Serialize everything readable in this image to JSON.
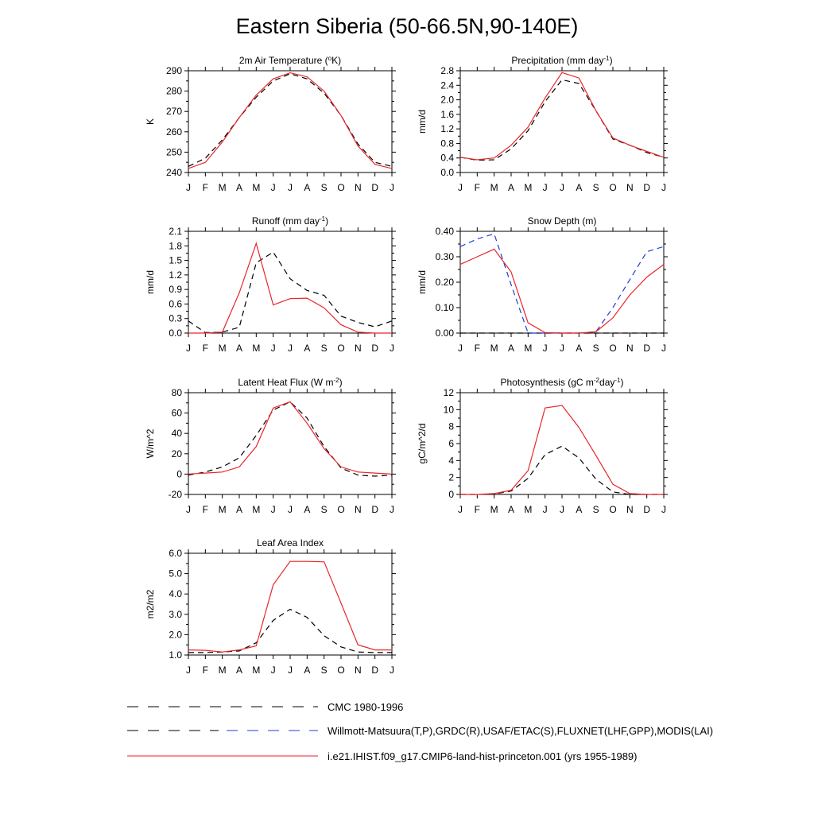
{
  "title": "Eastern Siberia (50-66.5N,90-140E)",
  "months": [
    "J",
    "F",
    "M",
    "A",
    "M",
    "J",
    "J",
    "A",
    "S",
    "O",
    "N",
    "D",
    "J"
  ],
  "colors": {
    "model": "#e8262b",
    "cmc": "#000000",
    "obs_black": "#000000",
    "obs_blue": "#1f3fd6"
  },
  "legend": [
    {
      "label": "CMC 1980-1996",
      "style": "dash-black"
    },
    {
      "label": "Willmott-Matsuura(T,P),GRDC(R),USAF/ETAC(S),FLUXNET(LHF,GPP),MODIS(LAI)",
      "style": "dash-black-blue"
    },
    {
      "label": "i.e21.IHIST.f09_g17.CMIP6-land-hist-princeton.001 (yrs 1955-1989)",
      "style": "solid-red"
    }
  ],
  "chart_data": [
    {
      "type": "line",
      "title": "2m Air Temperature (°K)",
      "ylabel": "K",
      "ylim": [
        240,
        290
      ],
      "yticks": [
        240,
        250,
        260,
        270,
        280,
        290
      ],
      "ytick_labels": [
        "240",
        "250",
        "260",
        "270",
        "280",
        "290"
      ],
      "categories": [
        "J",
        "F",
        "M",
        "A",
        "M",
        "J",
        "J",
        "A",
        "S",
        "O",
        "N",
        "D",
        "J"
      ],
      "series": [
        {
          "role": "obs",
          "color": "#000000",
          "dash": true,
          "values": [
            243,
            247,
            256,
            267,
            277,
            285,
            288.5,
            286,
            279,
            268,
            254,
            245,
            243
          ]
        },
        {
          "role": "model",
          "color": "#e8262b",
          "dash": false,
          "values": [
            242,
            245,
            255,
            267,
            278,
            286,
            289,
            287,
            280,
            268,
            253,
            244,
            242
          ]
        }
      ]
    },
    {
      "type": "line",
      "title": "Precipitation (mm day-1)",
      "ylabel": "mm/d",
      "ylim": [
        0,
        2.8
      ],
      "yticks": [
        0,
        0.4,
        0.8,
        1.2,
        1.6,
        2.0,
        2.4,
        2.8
      ],
      "ytick_labels": [
        "0.0",
        "0.4",
        "0.8",
        "1.2",
        "1.6",
        "2.0",
        "2.4",
        "2.8"
      ],
      "categories": [
        "J",
        "F",
        "M",
        "A",
        "M",
        "J",
        "J",
        "A",
        "S",
        "O",
        "N",
        "D",
        "J"
      ],
      "series": [
        {
          "role": "obs",
          "color": "#000000",
          "dash": true,
          "values": [
            0.42,
            0.34,
            0.35,
            0.65,
            1.15,
            1.95,
            2.55,
            2.45,
            1.7,
            0.92,
            0.75,
            0.55,
            0.42
          ]
        },
        {
          "role": "model",
          "color": "#e8262b",
          "dash": false,
          "values": [
            0.42,
            0.35,
            0.4,
            0.75,
            1.25,
            2.05,
            2.75,
            2.6,
            1.7,
            0.95,
            0.75,
            0.58,
            0.42
          ]
        }
      ]
    },
    {
      "type": "line",
      "title": "Runoff (mm day-1)",
      "ylabel": "mm/d",
      "ylim": [
        0,
        2.1
      ],
      "yticks": [
        0,
        0.3,
        0.6,
        0.9,
        1.2,
        1.5,
        1.8,
        2.1
      ],
      "ytick_labels": [
        "0.0",
        "0.3",
        "0.6",
        "0.9",
        "1.2",
        "1.5",
        "1.8",
        "2.1"
      ],
      "categories": [
        "J",
        "F",
        "M",
        "A",
        "M",
        "J",
        "J",
        "A",
        "S",
        "O",
        "N",
        "D",
        "J"
      ],
      "series": [
        {
          "role": "obs",
          "color": "#000000",
          "dash": true,
          "values": [
            0.25,
            0.01,
            0.02,
            0.12,
            1.45,
            1.67,
            1.12,
            0.88,
            0.78,
            0.35,
            0.22,
            0.13,
            0.25
          ]
        },
        {
          "role": "model",
          "color": "#e8262b",
          "dash": false,
          "values": [
            0.0,
            0.0,
            0.02,
            0.83,
            1.85,
            0.58,
            0.71,
            0.72,
            0.52,
            0.17,
            0.02,
            0.0,
            0.0
          ]
        }
      ]
    },
    {
      "type": "line",
      "title": "Snow Depth (m)",
      "ylabel": "mm/d",
      "ylim": [
        0,
        0.4
      ],
      "yticks": [
        0,
        0.1,
        0.2,
        0.3,
        0.4
      ],
      "ytick_labels": [
        "0.00",
        "0.10",
        "0.20",
        "0.30",
        "0.40"
      ],
      "categories": [
        "J",
        "F",
        "M",
        "A",
        "M",
        "J",
        "J",
        "A",
        "S",
        "O",
        "N",
        "D",
        "J"
      ],
      "series": [
        {
          "role": "cmc",
          "color": "#000000",
          "dash": true,
          "values": [
            0.0,
            0.0,
            0.0,
            0.0,
            0.0,
            0.0,
            0.0,
            0.0,
            0.0,
            0.0,
            0.0,
            0.0,
            0.0
          ]
        },
        {
          "role": "obs",
          "color": "#1f3fd6",
          "dash": true,
          "values": [
            0.34,
            0.37,
            0.39,
            0.19,
            0.0,
            0.0,
            0.0,
            0.0,
            0.005,
            0.1,
            0.21,
            0.32,
            0.34
          ]
        },
        {
          "role": "model",
          "color": "#e8262b",
          "dash": false,
          "values": [
            0.27,
            0.3,
            0.33,
            0.24,
            0.04,
            0.002,
            0.0,
            0.0,
            0.005,
            0.06,
            0.15,
            0.22,
            0.27
          ]
        }
      ]
    },
    {
      "type": "line",
      "title": "Latent Heat Flux (W m-2)",
      "ylabel": "W/m^2",
      "ylim": [
        -20,
        80
      ],
      "yticks": [
        -20,
        0,
        20,
        40,
        60,
        80
      ],
      "ytick_labels": [
        "-20",
        "0",
        "20",
        "40",
        "60",
        "80"
      ],
      "categories": [
        "J",
        "F",
        "M",
        "A",
        "M",
        "J",
        "J",
        "A",
        "S",
        "O",
        "N",
        "D",
        "J"
      ],
      "series": [
        {
          "role": "obs",
          "color": "#000000",
          "dash": true,
          "values": [
            -1,
            2,
            7,
            16,
            38,
            63,
            71,
            55,
            27,
            6,
            -1,
            -2,
            -1
          ]
        },
        {
          "role": "model",
          "color": "#e8262b",
          "dash": false,
          "values": [
            0,
            1,
            2,
            7,
            27,
            65,
            71,
            50,
            25,
            7,
            2,
            1,
            0
          ]
        }
      ]
    },
    {
      "type": "line",
      "title": "Photosynthesis (gC m-2day-1)",
      "ylabel": "gC/m^2/d",
      "ylim": [
        0,
        12
      ],
      "yticks": [
        0,
        2,
        4,
        6,
        8,
        10,
        12
      ],
      "ytick_labels": [
        "0",
        "2",
        "4",
        "6",
        "8",
        "10",
        "12"
      ],
      "categories": [
        "J",
        "F",
        "M",
        "A",
        "M",
        "J",
        "J",
        "A",
        "S",
        "O",
        "N",
        "D",
        "J"
      ],
      "series": [
        {
          "role": "obs",
          "color": "#000000",
          "dash": true,
          "values": [
            0,
            0,
            0.05,
            0.4,
            1.9,
            4.7,
            5.7,
            4.3,
            1.8,
            0.3,
            0,
            0,
            0
          ]
        },
        {
          "role": "model",
          "color": "#e8262b",
          "dash": false,
          "values": [
            0,
            0,
            0.1,
            0.5,
            2.8,
            10.2,
            10.5,
            7.9,
            4.6,
            1.2,
            0.1,
            0,
            0
          ]
        }
      ]
    },
    {
      "type": "line",
      "title": "Leaf Area Index",
      "ylabel": "m2/m2",
      "ylim": [
        1.0,
        6.0
      ],
      "yticks": [
        1,
        2,
        3,
        4,
        5,
        6
      ],
      "ytick_labels": [
        "1.0",
        "2.0",
        "3.0",
        "4.0",
        "5.0",
        "6.0"
      ],
      "categories": [
        "J",
        "F",
        "M",
        "A",
        "M",
        "J",
        "J",
        "A",
        "S",
        "O",
        "N",
        "D",
        "J"
      ],
      "series": [
        {
          "role": "obs",
          "color": "#000000",
          "dash": true,
          "values": [
            1.12,
            1.12,
            1.15,
            1.2,
            1.6,
            2.7,
            3.25,
            2.85,
            1.95,
            1.4,
            1.15,
            1.12,
            1.12
          ]
        },
        {
          "role": "model",
          "color": "#e8262b",
          "dash": false,
          "values": [
            1.25,
            1.23,
            1.15,
            1.25,
            1.45,
            4.45,
            5.6,
            5.6,
            5.58,
            3.55,
            1.5,
            1.25,
            1.25
          ]
        }
      ]
    }
  ]
}
